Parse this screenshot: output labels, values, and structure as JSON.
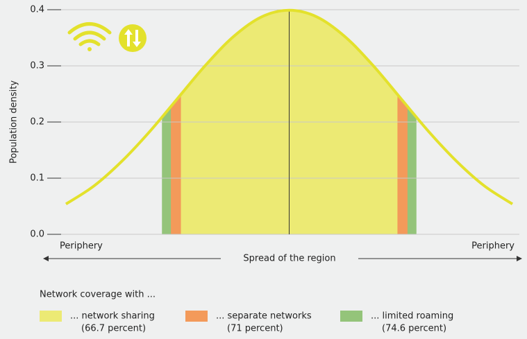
{
  "chart_data": {
    "type": "density",
    "y_label": "Population density",
    "x_label": "Spread of the region",
    "x_left_label": "Periphery",
    "x_right_label": "Periphery",
    "legend_title": "Network coverage with ...",
    "xlim": [
      -2,
      2
    ],
    "ylim": [
      0,
      0.4
    ],
    "yticks": [
      {
        "value": 0,
        "label": "0.0"
      },
      0.1,
      0.2,
      0.3,
      0.4
    ],
    "grid": true,
    "curve_color": "#e3e12c",
    "x": [
      -2,
      -1.75,
      -1.5,
      -1.25,
      -1,
      -0.75,
      -0.5,
      -0.25,
      0,
      0.25,
      0.5,
      0.75,
      1,
      1.25,
      1.5,
      1.75,
      2
    ],
    "values": [
      0.054,
      0.086,
      0.13,
      0.183,
      0.242,
      0.301,
      0.352,
      0.387,
      0.399,
      0.387,
      0.352,
      0.301,
      0.242,
      0.183,
      0.13,
      0.086,
      0.054
    ],
    "regions": [
      {
        "name": "... network sharing",
        "color": "#ecea74",
        "bounds": [
          -0.97,
          0.97
        ],
        "value": 66.7,
        "value_label": "(66.7 percent)"
      },
      {
        "name": "... separate networks",
        "color": "#f39a5a",
        "bounds": [
          -1.06,
          1.06
        ],
        "value": 71,
        "value_label": "(71 percent)"
      },
      {
        "name": "... limited roaming",
        "color": "#94c47a",
        "bounds": [
          -1.14,
          1.14
        ],
        "value": 74.6,
        "value_label": "(74.6 percent)"
      }
    ]
  }
}
